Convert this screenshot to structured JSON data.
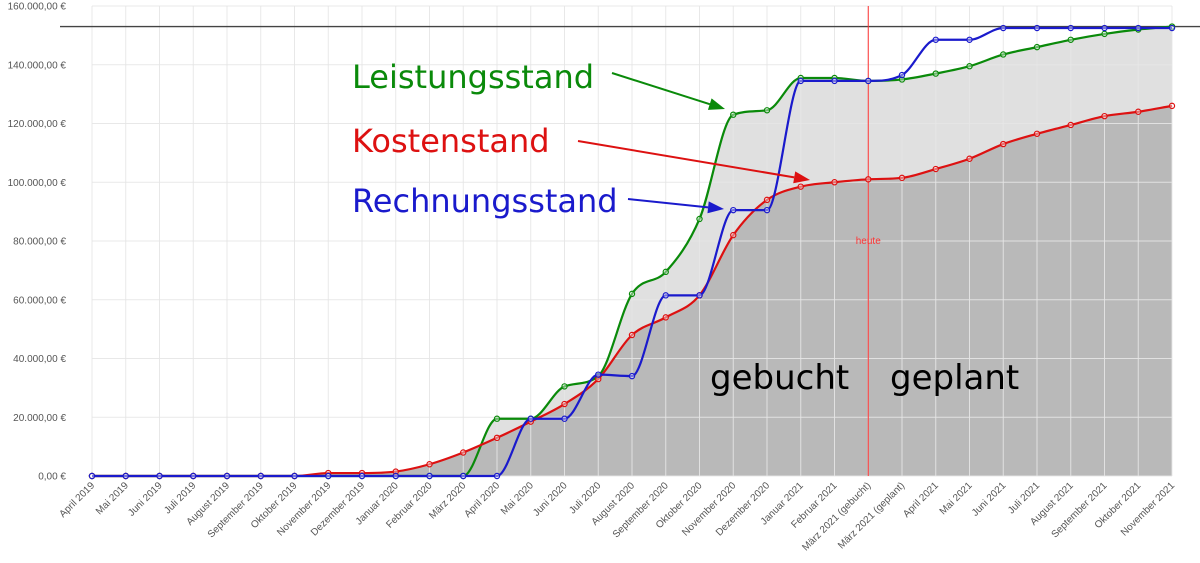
{
  "chart_data": {
    "type": "line",
    "categories": [
      "April 2019",
      "Mai 2019",
      "Juni 2019",
      "Juli 2019",
      "August 2019",
      "September 2019",
      "Oktober 2019",
      "November 2019",
      "Dezember 2019",
      "Januar 2020",
      "Februar 2020",
      "März 2020",
      "April 2020",
      "Mai 2020",
      "Juni 2020",
      "Juli 2020",
      "August 2020",
      "September 2020",
      "Oktober 2020",
      "November 2020",
      "Dezember 2020",
      "Januar 2021",
      "Februar 2021",
      "März 2021 (gebucht)",
      "März 2021 (geplant)",
      "April 2021",
      "Mai 2021",
      "Juni 2021",
      "Juli 2021",
      "August 2021",
      "September 2021",
      "Oktober 2021",
      "November 2021"
    ],
    "series": [
      {
        "name": "Leistungsstand",
        "color": "#0a8a0a",
        "values": [
          0,
          0,
          0,
          0,
          0,
          0,
          0,
          0,
          0,
          0,
          0,
          0,
          19500,
          19500,
          30500,
          34000,
          62000,
          69500,
          87500,
          123000,
          124500,
          135500,
          135500,
          134500,
          135000,
          137000,
          139500,
          143500,
          146000,
          148500,
          150500,
          152000,
          153000
        ]
      },
      {
        "name": "Kostenstand",
        "color": "#dd1111",
        "values": [
          0,
          0,
          0,
          0,
          0,
          0,
          0,
          1000,
          1000,
          1500,
          4000,
          8000,
          13000,
          18500,
          24500,
          33000,
          48000,
          54000,
          61500,
          82000,
          94000,
          98500,
          100000,
          101000,
          101500,
          104500,
          108000,
          113000,
          116500,
          119500,
          122500,
          124000,
          126000
        ]
      },
      {
        "name": "Rechnungsstand",
        "color": "#1a1acc",
        "values": [
          0,
          0,
          0,
          0,
          0,
          0,
          0,
          0,
          0,
          0,
          0,
          0,
          0,
          19500,
          19500,
          34500,
          34000,
          61500,
          61500,
          90500,
          90500,
          134500,
          134500,
          134500,
          136500,
          148500,
          148500,
          152500,
          152500,
          152500,
          152500,
          152500,
          152500
        ]
      }
    ],
    "ylim": [
      0,
      160000
    ],
    "yticks": [
      "0,00 €",
      "20.000,00 €",
      "40.000,00 €",
      "60.000,00 €",
      "80.000,00 €",
      "100.000,00 €",
      "120.000,00 €",
      "140.000,00 €",
      "160.000,00 €"
    ],
    "reference_line_value": 153000,
    "today_index": 23,
    "today_label": "heute",
    "zone_labels": {
      "left": "gebucht",
      "right": "geplant"
    },
    "grid": true,
    "colors": {
      "gebucht_fill": "#b9b9b9",
      "gap_fill": "#e0e0e0",
      "today": "#ff3333",
      "reference": "#444444",
      "grid": "#e6e6e6"
    }
  }
}
